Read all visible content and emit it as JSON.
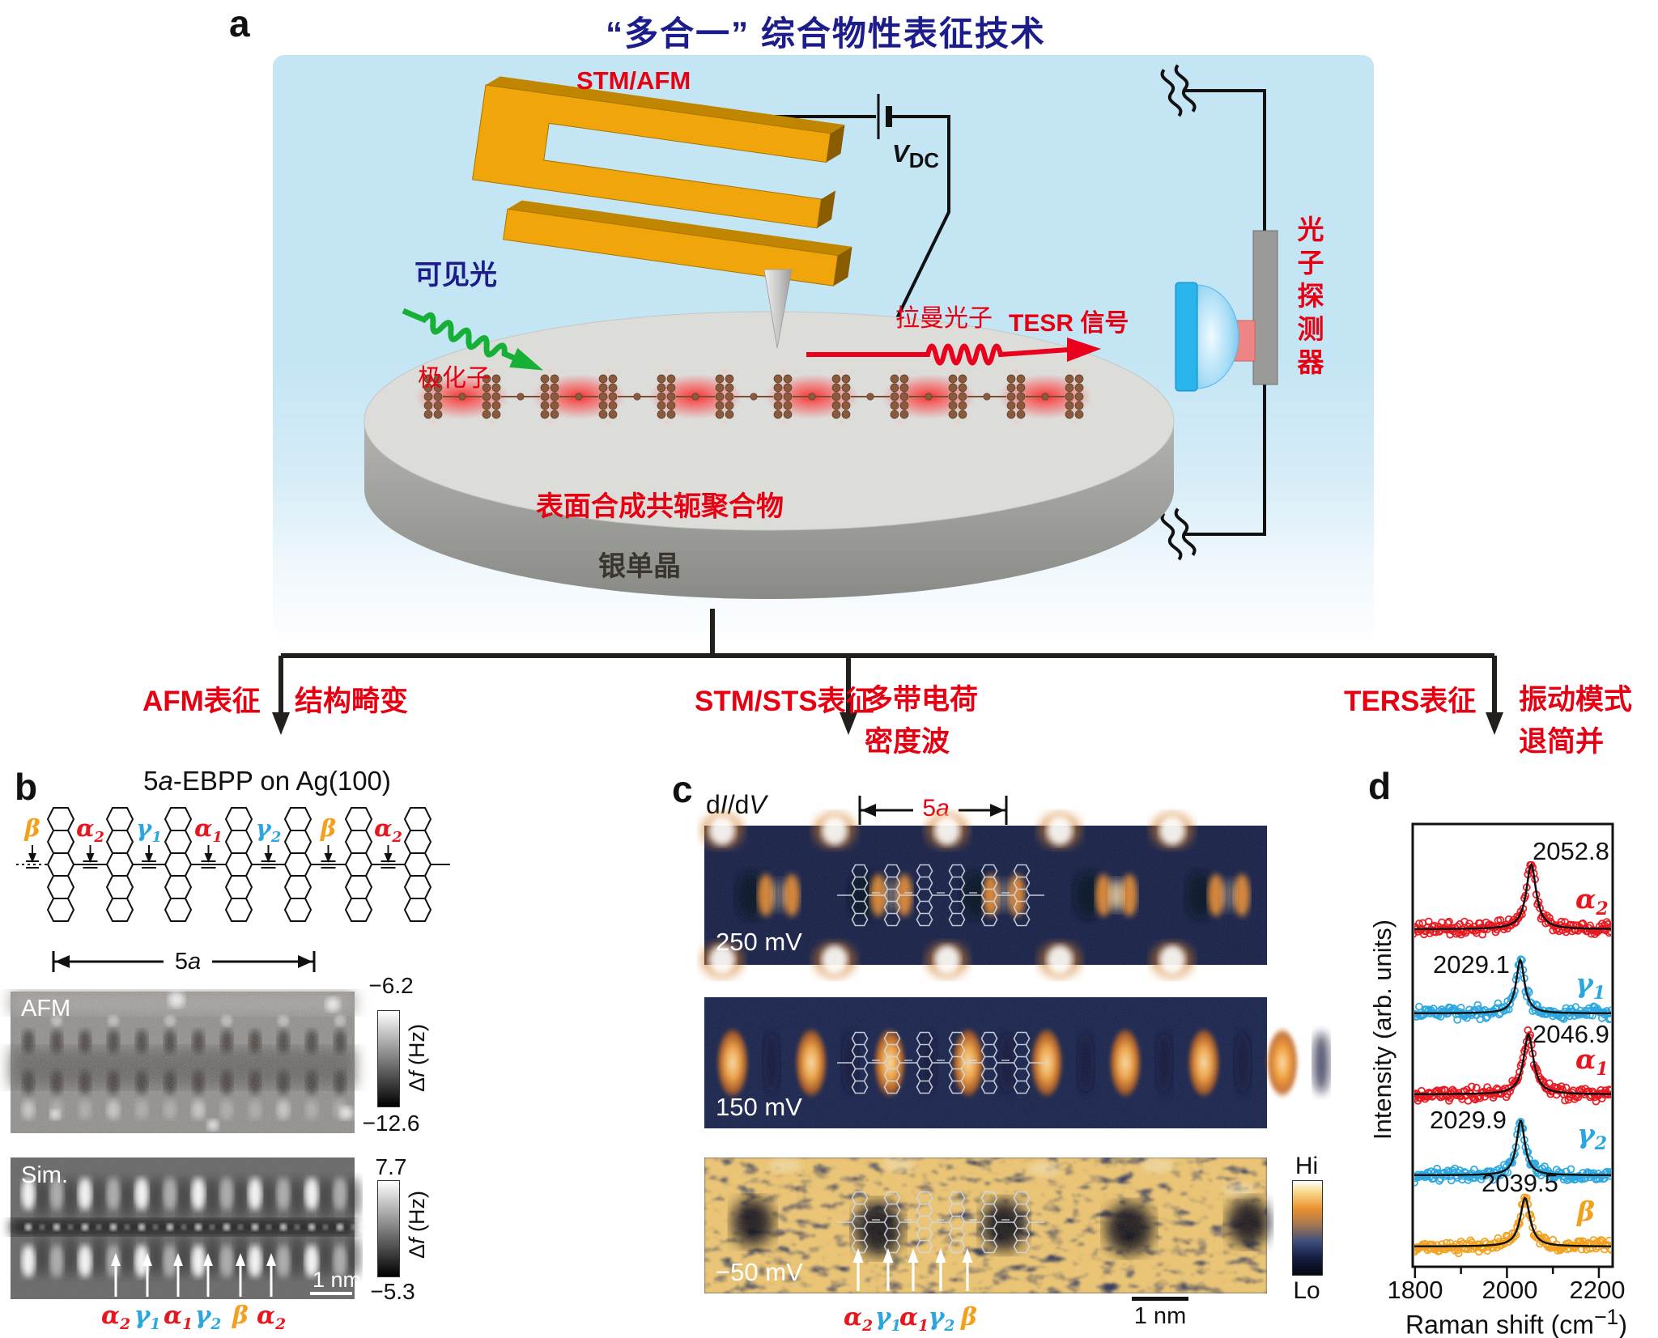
{
  "colors": {
    "accent_red": "#e60012",
    "title_navy": "#1c1c8c",
    "greek_red": "#e8171f",
    "greek_cyan": "#2ba7e0",
    "greek_orange": "#f2a01d",
    "stm_map_bg": "#141d45"
  },
  "panel_a": {
    "label": "a",
    "title": "“多合一” 综合物性表征技术",
    "probe_label": "STM/AFM",
    "bias_tokens": [
      {
        "t": "V",
        "i": 1,
        "b": 1
      },
      {
        "t": "DC",
        "sub": 1,
        "b": 1
      }
    ],
    "visible_light": "可见光",
    "polaron": "极化子",
    "raman_photon": "拉曼光子",
    "tesr_signal": "TESR 信号",
    "photon_detector": "光子探测器",
    "polymer": "表面合成共轭聚合物",
    "substrate": "银单晶"
  },
  "branches": [
    {
      "method": "AFM表征",
      "results": [
        "结构畸变"
      ]
    },
    {
      "method": "STM/STS表征",
      "results": [
        "多带电荷",
        "密度波"
      ]
    },
    {
      "method": "TERS表征",
      "results": [
        "振动模式",
        "退简并"
      ]
    }
  ],
  "panel_b": {
    "label": "b",
    "title_tokens": [
      {
        "t": "5"
      },
      {
        "t": "a",
        "i": 1
      },
      {
        "t": "-EBPP on Ag(100)"
      }
    ],
    "bond_labels": [
      {
        "t": "β",
        "c": "#f2a01d"
      },
      {
        "t": "α",
        "sub": "2",
        "c": "#e8171f"
      },
      {
        "t": "γ",
        "sub": "1",
        "c": "#2ba7e0"
      },
      {
        "t": "α",
        "sub": "1",
        "c": "#e8171f"
      },
      {
        "t": "γ",
        "sub": "2",
        "c": "#2ba7e0"
      },
      {
        "t": "β",
        "c": "#f2a01d"
      },
      {
        "t": "α",
        "sub": "2",
        "c": "#e8171f"
      }
    ],
    "unit_tokens": [
      {
        "t": "5"
      },
      {
        "t": "a",
        "i": 1
      }
    ],
    "afm_image": {
      "label": "AFM",
      "cbar_max": "−6.2",
      "cbar_min": "−12.6",
      "cbar_unit_tokens": [
        {
          "t": "Δ"
        },
        {
          "t": "f",
          "i": 1
        },
        {
          "t": " (Hz)"
        }
      ]
    },
    "sim_image": {
      "label": "Sim.",
      "cbar_max": "7.7",
      "cbar_min": "−5.3",
      "cbar_unit_tokens": [
        {
          "t": "Δ"
        },
        {
          "t": "f",
          "i": 1
        },
        {
          "t": " (Hz)"
        }
      ],
      "scalebar": "1 nm",
      "site_labels": [
        {
          "t": "α",
          "sub": "2",
          "c": "#e8171f"
        },
        {
          "t": "γ",
          "sub": "1",
          "c": "#2ba7e0"
        },
        {
          "t": "α",
          "sub": "1",
          "c": "#e8171f"
        },
        {
          "t": "γ",
          "sub": "2",
          "c": "#2ba7e0"
        },
        {
          "t": "β",
          "c": "#f2a01d"
        },
        {
          "t": "α",
          "sub": "2",
          "c": "#e8171f"
        }
      ]
    }
  },
  "panel_c": {
    "label": "c",
    "map_type_tokens": [
      {
        "t": "d"
      },
      {
        "t": "I",
        "i": 1
      },
      {
        "t": "/d"
      },
      {
        "t": "V",
        "i": 1
      }
    ],
    "unit_tokens": [
      {
        "t": "5"
      },
      {
        "t": "a",
        "i": 1
      }
    ],
    "bias_labels": [
      "250 mV",
      "150 mV",
      "−50 mV"
    ],
    "cbar_max": "Hi",
    "cbar_min": "Lo",
    "scalebar": "1 nm",
    "site_labels": [
      {
        "t": "α",
        "sub": "2",
        "c": "#e8171f"
      },
      {
        "t": "γ",
        "sub": "1",
        "c": "#2ba7e0"
      },
      {
        "t": "α",
        "sub": "1",
        "c": "#e8171f"
      },
      {
        "t": "γ",
        "sub": "2",
        "c": "#2ba7e0"
      },
      {
        "t": "β",
        "c": "#f2a01d"
      }
    ]
  },
  "panel_d": {
    "label": "d"
  },
  "chart_data": {
    "type": "scatter",
    "xlabel_tokens": [
      {
        "t": "Raman shift (cm"
      },
      {
        "t": "−1",
        "sup": 1
      },
      {
        "t": ")"
      }
    ],
    "ylabel": "Intensity (arb. units)",
    "x_range": [
      1795,
      2230
    ],
    "x_ticks": [
      1800,
      1900,
      2000,
      2100,
      2200
    ],
    "x_tick_labels": [
      "1800",
      "2000",
      "2200"
    ],
    "grid": false,
    "legend_position": "right of each trace",
    "series": [
      {
        "name": "alpha2",
        "label_tokens": {
          "t": "α",
          "sub": "2",
          "c": "#e8171f"
        },
        "color": "#e8171f",
        "peak_cm": 2052.8,
        "peak_label": "2052.8",
        "relative_height": 1.0
      },
      {
        "name": "gamma1",
        "label_tokens": {
          "t": "γ",
          "sub": "1",
          "c": "#2ba7e0"
        },
        "color": "#2ba7e0",
        "peak_cm": 2029.1,
        "peak_label": "2029.1",
        "relative_height": 0.82
      },
      {
        "name": "alpha1",
        "label_tokens": {
          "t": "α",
          "sub": "1",
          "c": "#e8171f"
        },
        "color": "#e8171f",
        "peak_cm": 2046.9,
        "peak_label": "2046.9",
        "relative_height": 0.92
      },
      {
        "name": "gamma2",
        "label_tokens": {
          "t": "γ",
          "sub": "2",
          "c": "#2ba7e0"
        },
        "color": "#2ba7e0",
        "peak_cm": 2029.9,
        "peak_label": "2029.9",
        "relative_height": 0.85
      },
      {
        "name": "beta",
        "label_tokens": {
          "t": "β",
          "c": "#f2a01d"
        },
        "color": "#f2a01d",
        "peak_cm": 2039.5,
        "peak_label": "2039.5",
        "relative_height": 0.75
      }
    ]
  }
}
